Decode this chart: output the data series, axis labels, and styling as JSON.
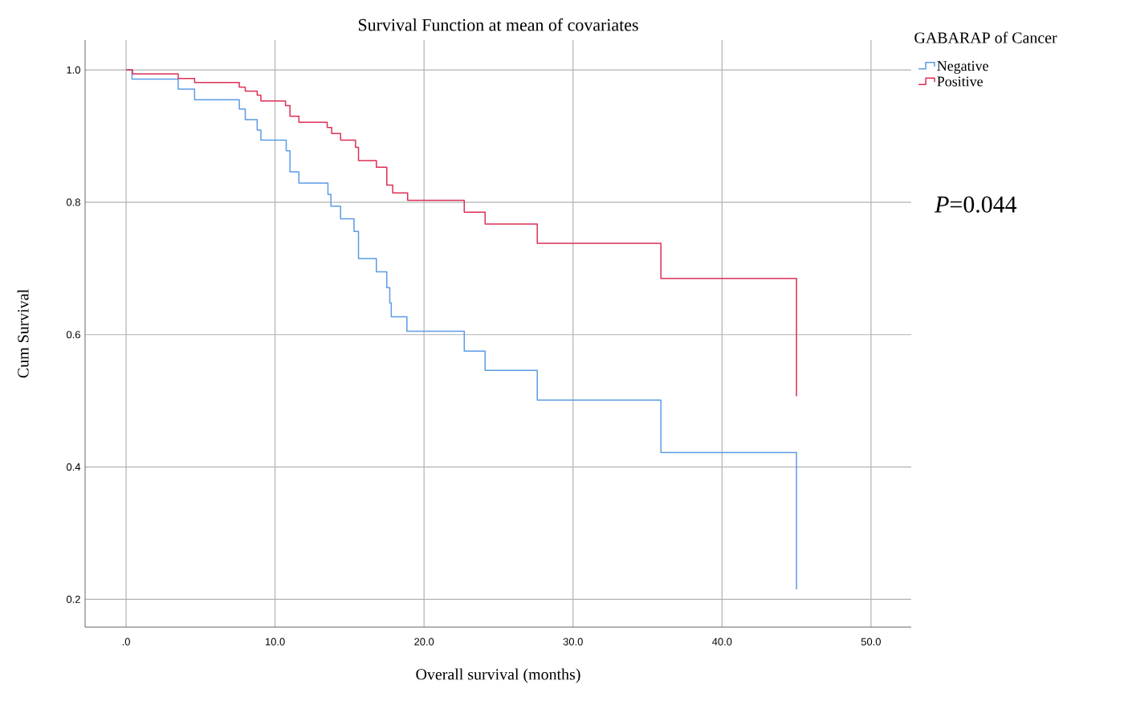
{
  "chart_data": {
    "type": "step",
    "title": "Survival Function at mean of covariates",
    "xlabel": "Overall survival (months)",
    "ylabel": "Cum Survival",
    "legend_title": "GABARAP of Cancer",
    "series": [
      {
        "name": "Negative",
        "color": "#5b9be6",
        "x": [
          0,
          0.4,
          3.5,
          4.6,
          7.6,
          8.0,
          8.8,
          9.05,
          10.75,
          11.0,
          11.6,
          13.55,
          13.75,
          14.4,
          15.3,
          15.6,
          16.8,
          17.5,
          17.7,
          17.8,
          18.85,
          22.7,
          24.1,
          27.6,
          35.9,
          45.0
        ],
        "values": [
          1.0,
          0.986,
          0.971,
          0.955,
          0.941,
          0.925,
          0.909,
          0.894,
          0.878,
          0.846,
          0.829,
          0.812,
          0.794,
          0.775,
          0.756,
          0.715,
          0.695,
          0.671,
          0.648,
          0.627,
          0.605,
          0.575,
          0.546,
          0.501,
          0.422,
          0.215
        ]
      },
      {
        "name": "Positive",
        "color": "#dc2f55",
        "x": [
          0,
          0.43,
          3.5,
          4.6,
          7.6,
          8.0,
          8.8,
          9.05,
          10.7,
          11.0,
          11.6,
          13.5,
          13.8,
          14.4,
          15.4,
          15.6,
          16.8,
          17.5,
          17.9,
          18.9,
          22.7,
          24.1,
          27.6,
          35.9,
          45.0
        ],
        "values": [
          1.0,
          0.994,
          0.987,
          0.981,
          0.974,
          0.968,
          0.962,
          0.953,
          0.946,
          0.93,
          0.921,
          0.913,
          0.904,
          0.894,
          0.883,
          0.863,
          0.853,
          0.826,
          0.814,
          0.803,
          0.785,
          0.767,
          0.738,
          0.685,
          0.507
        ]
      }
    ],
    "xlim": [
      -2.75,
      52.7
    ],
    "ylim": [
      0.158,
      1.045
    ],
    "xticks": [
      {
        "value": 0,
        "label": ".0"
      },
      {
        "value": 10,
        "label": "10.0"
      },
      {
        "value": 20,
        "label": "20.0"
      },
      {
        "value": 30,
        "label": "30.0"
      },
      {
        "value": 40,
        "label": "40.0"
      },
      {
        "value": 50,
        "label": "50.0"
      }
    ],
    "yticks": [
      {
        "value": 0.2,
        "label": "0.2"
      },
      {
        "value": 0.4,
        "label": "0.4"
      },
      {
        "value": 0.6,
        "label": "0.6"
      },
      {
        "value": 0.8,
        "label": "0.8"
      },
      {
        "value": 1.0,
        "label": "1.0"
      }
    ],
    "grid": true,
    "legend": "top right",
    "line_style": "solid",
    "marker": "none",
    "annotations": [
      "*P*=0.044"
    ]
  }
}
